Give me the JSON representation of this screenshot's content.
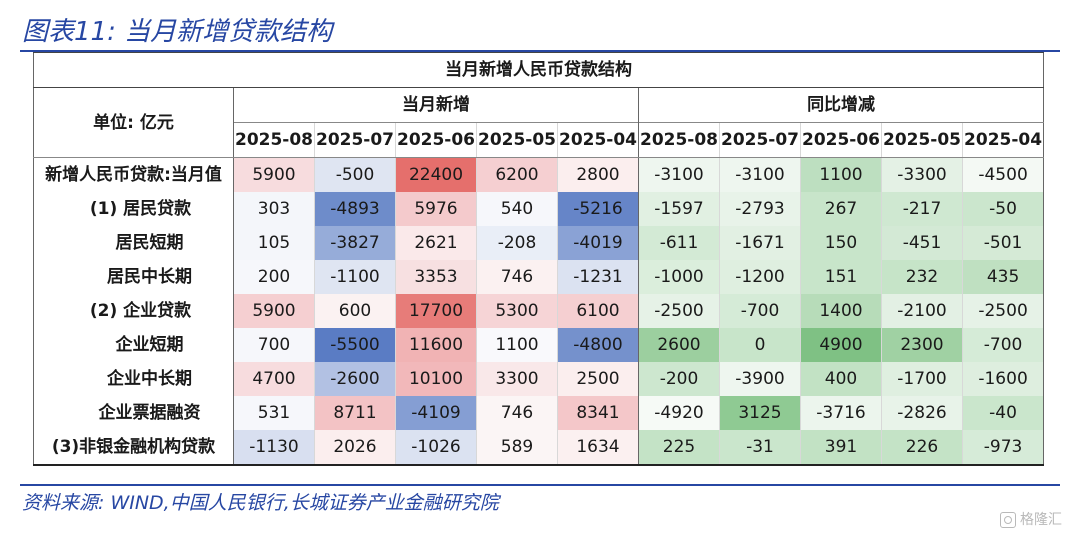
{
  "figure": {
    "title": "图表11:  当月新增贷款结构",
    "source": "资料来源: WIND,中国人民银行,长城证券产业金融研究院",
    "watermark": "格隆汇"
  },
  "table": {
    "title": "当月新增人民币贷款结构",
    "unit_label": "单位: 亿元",
    "group_headers": [
      "当月新增",
      "同比增减"
    ],
    "months": [
      "2025-08",
      "2025-07",
      "2025-06",
      "2025-05",
      "2025-04",
      "2025-08",
      "2025-07",
      "2025-06",
      "2025-05",
      "2025-04"
    ],
    "rows": [
      {
        "label": "新增人民币贷款:当月值",
        "indent": 0,
        "cells": [
          "5900",
          "-500",
          "22400",
          "6200",
          "2800",
          "-3100",
          "-3100",
          "1100",
          "-3300",
          "-4500"
        ],
        "colors": [
          "#f7dcde",
          "#dfe5f2",
          "#e56f6c",
          "#f5cfd1",
          "#fbeeee",
          "#eef6ef",
          "#eef6ef",
          "#bddfc0",
          "#e4f1e5",
          "#f4f9f4"
        ]
      },
      {
        "label": "(1) 居民贷款",
        "indent": 1,
        "cells": [
          "303",
          "-4893",
          "5976",
          "540",
          "-5216",
          "-1597",
          "-2793",
          "267",
          "-217",
          "-50"
        ],
        "colors": [
          "#f4f6fa",
          "#6e8cca",
          "#f4cacc",
          "#f6f7fb",
          "#6685c8",
          "#e1f0e2",
          "#e8f3e9",
          "#c8e5ca",
          "#cfe8d1",
          "#cbe6cd"
        ]
      },
      {
        "label": "居民短期",
        "indent": 2,
        "cells": [
          "105",
          "-3827",
          "2621",
          "-208",
          "-4019"
        ],
        "extra": [
          "-611",
          "-1671",
          "150",
          "-451",
          "-501"
        ],
        "colors": [
          "#f4f6fa",
          "#96acd9",
          "#fae9ea",
          "#e9eef7",
          "#8aa2d5",
          "#d3eAd5",
          "#e2f0e3",
          "#c8e5ca",
          "#d3e9d5",
          "#d5ead6"
        ]
      },
      {
        "label": "居民中长期",
        "indent": 2,
        "cells": [
          "200",
          "-1100",
          "3353",
          "746",
          "-1231"
        ],
        "extra": [
          "-1000",
          "-1200",
          "151",
          "232",
          "435"
        ],
        "colors": [
          "#f6f7fb",
          "#dfe5f2",
          "#f7e0e1",
          "#fbf1f1",
          "#dbe2f1",
          "#dbeedc",
          "#dfeFe0",
          "#c8e5ca",
          "#c6e4c8",
          "#bfe0c1"
        ]
      },
      {
        "label": "(2) 企业贷款",
        "indent": 1,
        "cells": [
          "5900",
          "600",
          "17700",
          "5300",
          "6100"
        ],
        "extra": [
          "-2500",
          "-700",
          "1400",
          "-2100",
          "-2500"
        ],
        "colors": [
          "#f5cfd1",
          "#fbf2f2",
          "#e77c79",
          "#f6d4d6",
          "#f5cfd1",
          "#e6f2e7",
          "#d5ebd7",
          "#b7dcb9",
          "#e3f0e4",
          "#e6f2e7"
        ]
      },
      {
        "label": "企业短期",
        "indent": 2,
        "cells": [
          "700",
          "-5500",
          "11600",
          "1100",
          "-4800"
        ],
        "extra": [
          "2600",
          "0",
          "4900",
          "2300",
          "-700"
        ],
        "colors": [
          "#f6f7fb",
          "#5a7cc4",
          "#f1b3b4",
          "#f9f9fc",
          "#7591cc",
          "#9ccf9f",
          "#c8e5ca",
          "#7fc184",
          "#a0d1a3",
          "#d5ebd7"
        ]
      },
      {
        "label": "企业中长期",
        "indent": 2,
        "cells": [
          "4700",
          "-2600",
          "10100",
          "3300",
          "2500"
        ],
        "extra": [
          "-200",
          "-3900",
          "400",
          "-1700",
          "-1600"
        ],
        "colors": [
          "#f7dcde",
          "#b2c1e3",
          "#f2b8ba",
          "#f9e8e9",
          "#fbeeee",
          "#cde7cf",
          "#eef6ef",
          "#c2e2c4",
          "#dfefe0",
          "#deeedf"
        ]
      },
      {
        "label": "企业票据融资",
        "indent": 2,
        "cells": [
          "531",
          "8711",
          "-4109",
          "746",
          "8341"
        ],
        "extra": [
          "-4920",
          "3125",
          "-3716",
          "-2826",
          "-40"
        ],
        "colors": [
          "#f6f7fb",
          "#f3c3c5",
          "#859ed3",
          "#fbf5f5",
          "#f4c7c9",
          "#f6faf6",
          "#8fca93",
          "#ecf5ed",
          "#e8f3e9",
          "#cae6cc"
        ]
      },
      {
        "label": "(3)非银金融机构贷款",
        "indent": 0,
        "cells": [
          "-1130",
          "2026",
          "-1026",
          "589",
          "1634"
        ],
        "extra": [
          "225",
          "-31",
          "391",
          "226",
          "-973"
        ],
        "colors": [
          "#d8dff0",
          "#fbeeee",
          "#dbe2f1",
          "#fbf5f5",
          "#fbf0f0",
          "#c4e3c6",
          "#cae6cc",
          "#c2e2c4",
          "#c4e3c6",
          "#d6ebd8"
        ]
      }
    ]
  }
}
